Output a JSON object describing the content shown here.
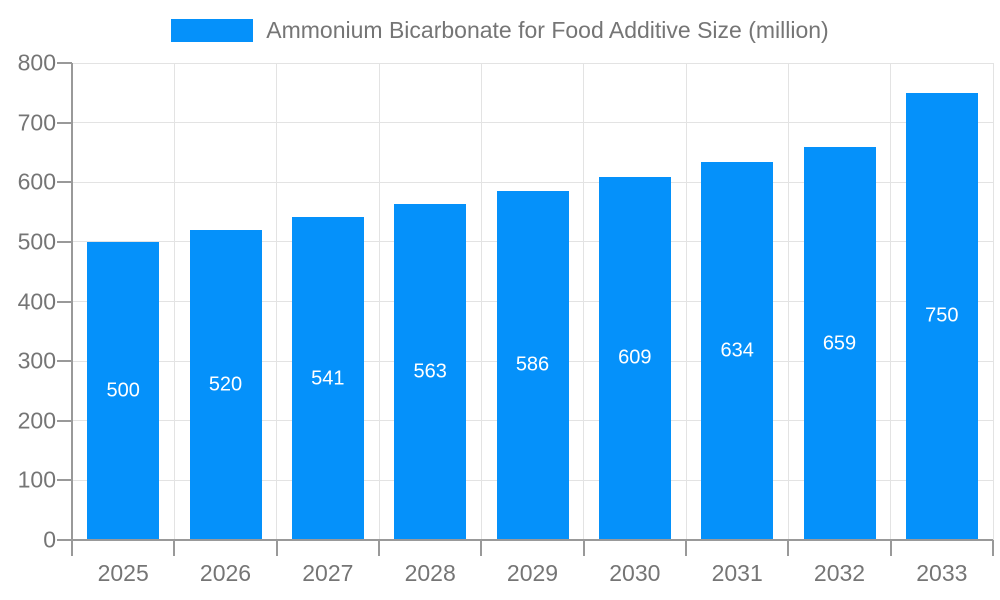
{
  "legend": {
    "label": "Ammonium Bicarbonate for Food Additive Size (million)"
  },
  "chart_data": {
    "type": "bar",
    "title": "Ammonium Bicarbonate for Food Additive Size (million)",
    "categories": [
      "2025",
      "2026",
      "2027",
      "2028",
      "2029",
      "2030",
      "2031",
      "2032",
      "2033"
    ],
    "values": [
      500,
      520,
      541,
      563,
      586,
      609,
      634,
      659,
      750
    ],
    "xlabel": "",
    "ylabel": "",
    "ylim": [
      0,
      800
    ],
    "ytick_step": 100,
    "y_tick_labels": [
      "0",
      "100",
      "200",
      "300",
      "400",
      "500",
      "600",
      "700",
      "800"
    ],
    "grid": true,
    "legend_position": "top-center",
    "bar_labels_inside": true,
    "colors": {
      "bar": "#0591fa",
      "bar_label": "#ffffff",
      "axis_text": "#757575",
      "grid_line": "#e3e3e3",
      "axis_line": "#999999"
    }
  }
}
